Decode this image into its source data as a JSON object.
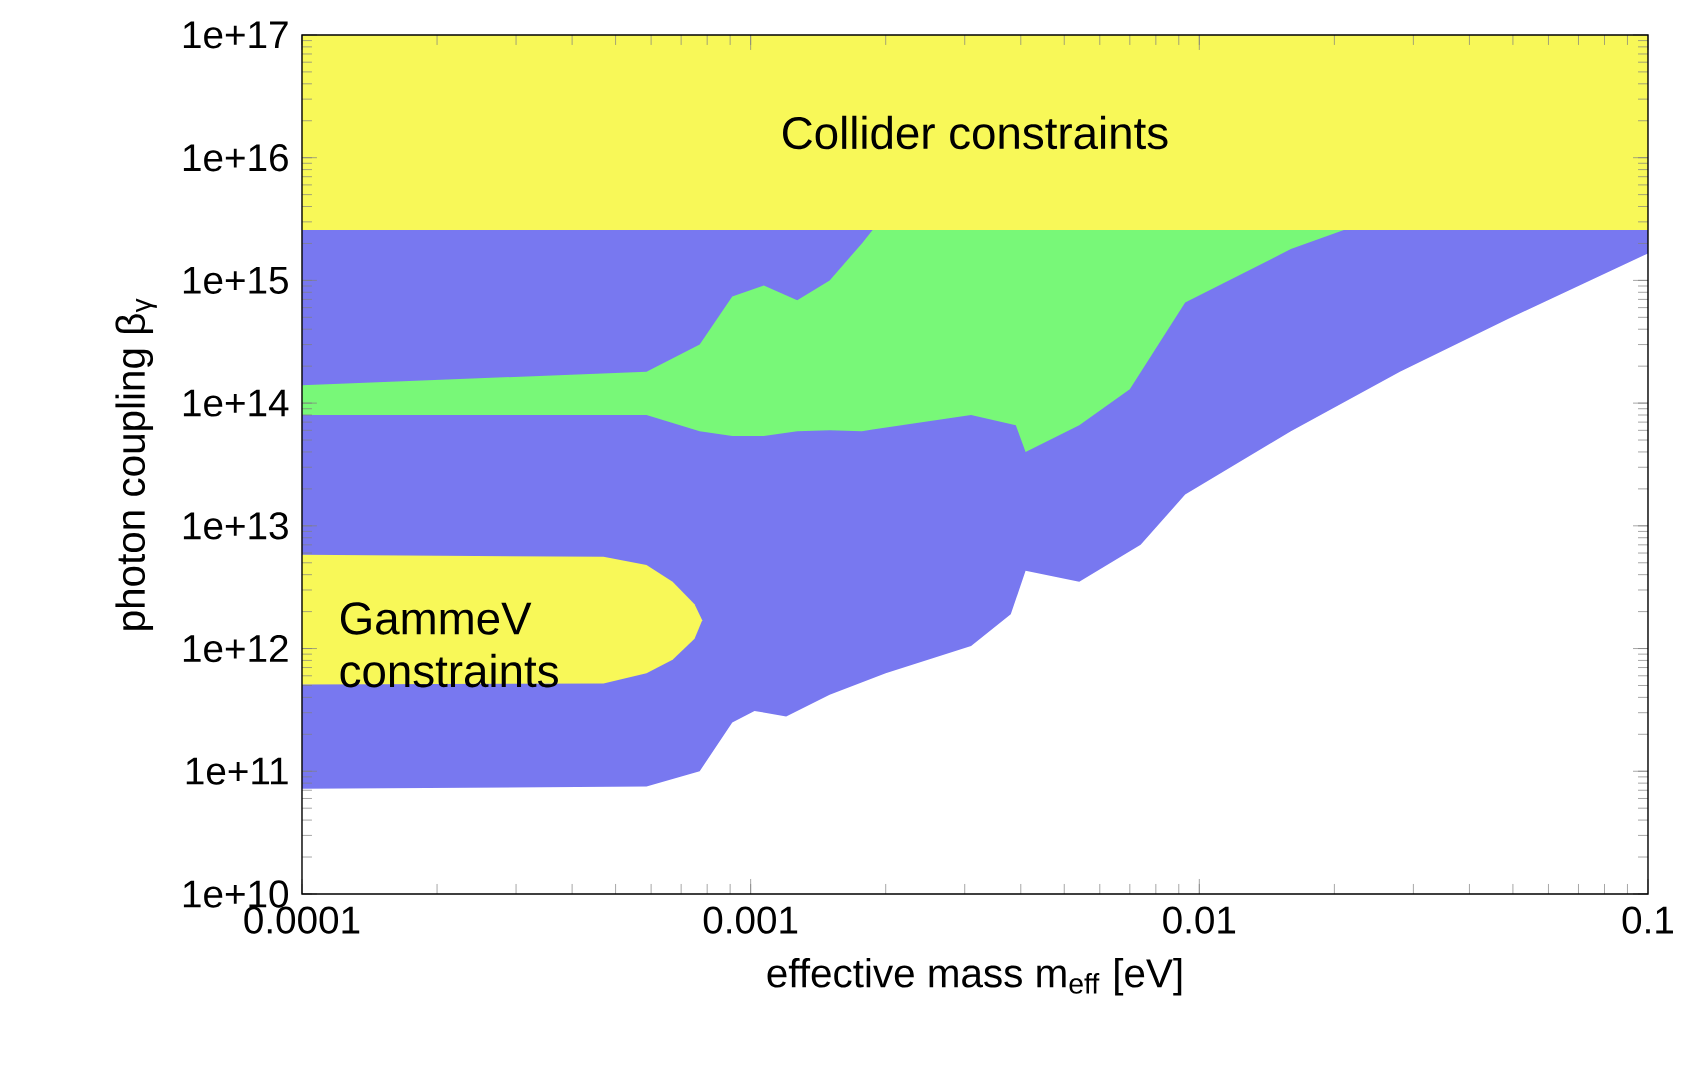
{
  "chart_data": {
    "type": "area",
    "xlabel": "effective mass m$_{eff}$ [eV]",
    "ylabel": "photon coupling β$_{γ}$",
    "log": "xy",
    "xlim": [
      0.0001,
      0.1
    ],
    "ylim": [
      10000000000.0,
      1e+17
    ],
    "xticks": [
      0.0001,
      0.001,
      0.01,
      0.1
    ],
    "yticks": [
      {
        "value": 10000000000.0,
        "label": "1e+10"
      },
      {
        "value": 100000000000.0,
        "label": "1e+11"
      },
      {
        "value": 1000000000000.0,
        "label": "1e+12"
      },
      {
        "value": 10000000000000.0,
        "label": "1e+13"
      },
      {
        "value": 100000000000000.0,
        "label": "1e+14"
      },
      {
        "value": 1000000000000000.0,
        "label": "1e+15"
      },
      {
        "value": 1e+16,
        "label": "1e+16"
      },
      {
        "value": 1e+17,
        "label": "1e+17"
      }
    ],
    "bands": [
      {
        "axis": "y",
        "from": 2570000000000000.0,
        "to": 1e+17,
        "label": "Collider constraints",
        "color": "#f8f858"
      }
    ],
    "annotations": [
      "GammeV constraints"
    ],
    "series": [
      {
        "color": "#7878f0",
        "x": [
          0.0001,
          0.1,
          0.1,
          0.049,
          0.028,
          0.016,
          0.0093,
          0.0074,
          0.0054,
          0.0041,
          0.0038,
          0.0031,
          0.002,
          0.0015,
          0.0012,
          0.00102,
          0.00091,
          0.00077,
          0.000586,
          0.0001
        ],
        "values": [
          2570000000000000.0,
          2570000000000000.0,
          1660000000000000.0,
          490000000000000.0,
          180000000000000.0,
          59000000000000.0,
          18000000000000.0,
          7000000000000.0,
          3500000000000.0,
          4300000000000.0,
          1900000000000.0,
          1050000000000.0,
          630000000000.0,
          420000000000.0,
          280000000000.0,
          310000000000.0,
          250000000000.0,
          100000000000.0,
          75000000000.0,
          72000000000.0
        ]
      },
      {
        "color": "#78f878",
        "x": [
          0.0001,
          0.000586,
          0.00077,
          0.00091,
          0.00107,
          0.00127,
          0.0015,
          0.00177,
          0.00187,
          0.021,
          0.016,
          0.0093,
          0.007,
          0.0054,
          0.0041,
          0.0039,
          0.0031,
          0.00187,
          0.00177,
          0.0015,
          0.00127,
          0.00107,
          0.00091,
          0.00077,
          0.000586,
          0.0001
        ],
        "values": [
          140000000000000.0,
          180000000000000.0,
          300000000000000.0,
          740000000000000.0,
          910000000000000.0,
          690000000000000.0,
          1000000000000000.0,
          2000000000000000.0,
          2570000000000000.0,
          2570000000000000.0,
          1800000000000000.0,
          660000000000000.0,
          130000000000000.0,
          66000000000000.0,
          40000000000000.0,
          66000000000000.0,
          80000000000000.0,
          61000000000000.0,
          59000000000000.0,
          60000000000000.0,
          59000000000000.0,
          54000000000000.0,
          54000000000000.0,
          59000000000000.0,
          80000000000000.0,
          80000000000000.0
        ]
      },
      {
        "color": "#f8f858",
        "x": [
          0.0001,
          0.00047,
          0.000586,
          0.00067,
          0.00075,
          0.00078,
          0.00075,
          0.00067,
          0.000586,
          0.00047,
          0.0001
        ],
        "values": [
          5800000000000.0,
          5600000000000.0,
          4800000000000.0,
          3500000000000.0,
          2300000000000.0,
          1700000000000.0,
          1200000000000.0,
          810000000000.0,
          630000000000.0,
          520000000000.0,
          510000000000.0
        ]
      }
    ]
  }
}
